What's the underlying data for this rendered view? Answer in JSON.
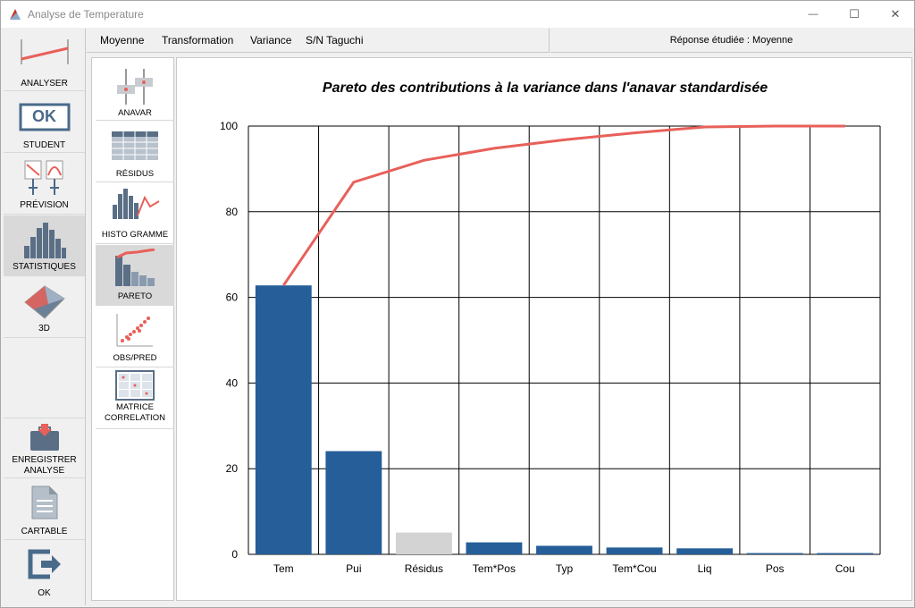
{
  "window": {
    "title": "Analyse de Temperature",
    "minimize_glyph": "—",
    "maximize_glyph": "☐",
    "close_glyph": "✕"
  },
  "sidebar": {
    "items": [
      {
        "label": "ANALYSER",
        "icon": "analyse-line-icon"
      },
      {
        "label": "STUDENT",
        "icon": "ok-box-icon"
      },
      {
        "label": "PRÉVISION",
        "icon": "prevision-icon"
      },
      {
        "label": "STATISTIQUES",
        "icon": "histogram-icon"
      },
      {
        "label": "3D",
        "icon": "surface-3d-icon"
      },
      {
        "label_line1": "ENREGISTRER",
        "label_line2": "ANALYSE",
        "icon": "briefcase-icon"
      },
      {
        "label": "CARTABLE",
        "icon": "document-icon"
      },
      {
        "label": "OK",
        "icon": "exit-icon"
      }
    ],
    "ok_glyph": "OK"
  },
  "menu": {
    "items": [
      "Moyenne",
      "Transformation",
      "Variance",
      "S/N Taguchi"
    ]
  },
  "response": {
    "text": "Réponse étudiée : Moyenne"
  },
  "subbar": {
    "items": [
      {
        "label": "ANAVAR",
        "icon": "anavar-icon"
      },
      {
        "label": "RÉSIDUS",
        "icon": "residus-table-icon"
      },
      {
        "label": "HISTO GRAMME",
        "icon": "histogram-curve-icon"
      },
      {
        "label": "PARETO",
        "icon": "pareto-icon"
      },
      {
        "label": "OBS/PRED",
        "icon": "scatter-icon"
      },
      {
        "label_line1": "MATRICE",
        "label_line2": "CORRELATION",
        "icon": "matrix-icon"
      }
    ]
  },
  "colors": {
    "bar": "#255e98",
    "bar_residual": "#d3d3d3",
    "cumulative_line": "#e8605a",
    "grid": "#000000"
  },
  "chart_data": {
    "type": "bar",
    "title": "Pareto des contributions à la variance dans l'anavar standardisée",
    "categories": [
      "Tem",
      "Pui",
      "Résidus",
      "Tem*Pos",
      "Typ",
      "Tem*Cou",
      "Liq",
      "Pos",
      "Cou"
    ],
    "values": [
      62.8,
      24.1,
      5.1,
      2.8,
      2.0,
      1.6,
      1.4,
      0.3,
      0.3
    ],
    "residual_category": "Résidus",
    "cumulative": [
      62.8,
      86.9,
      92.0,
      94.8,
      96.8,
      98.4,
      99.8,
      100,
      100
    ],
    "ylim": [
      0,
      100
    ],
    "yticks": [
      0,
      20,
      40,
      60,
      80,
      100
    ],
    "ytick_labels": [
      "0",
      "20",
      "40",
      "60",
      "80",
      "100"
    ],
    "grid": true,
    "xlabel": "",
    "ylabel": ""
  }
}
